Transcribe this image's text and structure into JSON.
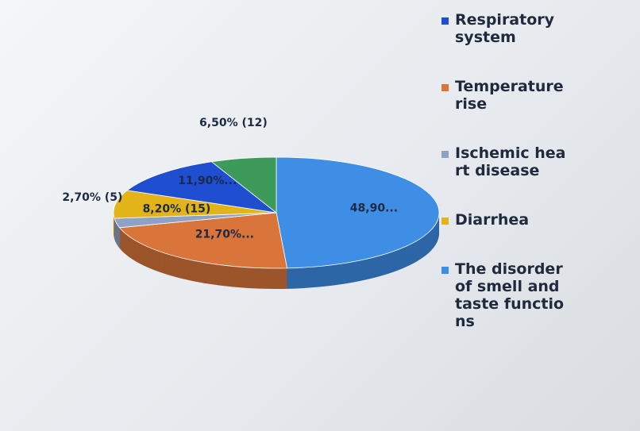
{
  "chart_data": {
    "type": "pie",
    "categories": [
      "Respiratory system",
      "Temperature rise",
      "Ischemic heart disease",
      "Diarrhea",
      "The disorder of smell and taste functions",
      null
    ],
    "values": [
      11.9,
      21.7,
      2.7,
      8.2,
      48.9,
      6.5
    ],
    "value_labels": [
      "11,90%...",
      "21,70%...",
      "2,70% (5)",
      "8,20% (15)",
      "48,90...",
      "6,50% (12)"
    ],
    "colors": [
      "#1f4fd0",
      "#d9743a",
      "#8ea3c4",
      "#e2b419",
      "#3f8ee6",
      "#3e9a5a"
    ],
    "legend": "right"
  }
}
